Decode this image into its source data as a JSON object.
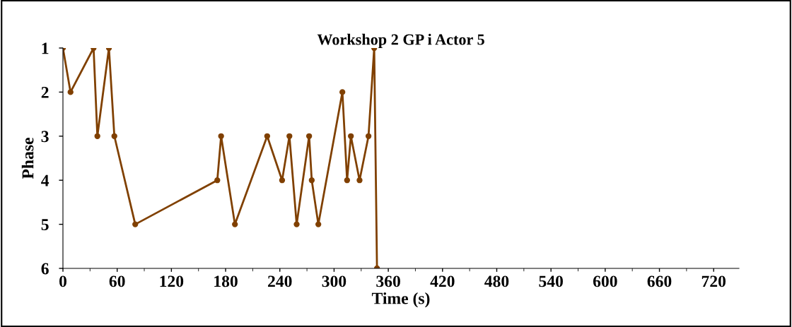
{
  "chart_data": {
    "type": "line",
    "title": "Workshop 2 GP i Actor 5",
    "xlabel": "Time (s)",
    "ylabel": "Phase",
    "x": [
      0,
      8.4,
      33.9,
      38.1,
      50.9,
      56.9,
      80,
      170.8,
      175,
      190.3,
      226,
      242.5,
      250.6,
      258.6,
      272.4,
      275.3,
      282.6,
      309.2,
      314.4,
      318.6,
      328.2,
      338.1,
      344.4,
      347.5
    ],
    "series": [
      {
        "color": "#804000",
        "values": [
          1,
          2,
          1,
          3,
          1,
          3,
          5,
          4,
          3,
          5,
          3,
          4,
          3,
          5,
          3,
          4,
          5,
          2,
          4,
          3,
          4,
          3,
          1,
          6
        ]
      }
    ],
    "xlim": [
      0,
      748
    ],
    "xticks": [
      0,
      60,
      120,
      180,
      240,
      300,
      360,
      420,
      480,
      540,
      600,
      660,
      720
    ],
    "ylim": [
      6,
      1
    ],
    "yticks": [
      1,
      2,
      3,
      4,
      5,
      6
    ],
    "grid": false,
    "legend": false,
    "marker": "circle",
    "line_style": "solid"
  }
}
